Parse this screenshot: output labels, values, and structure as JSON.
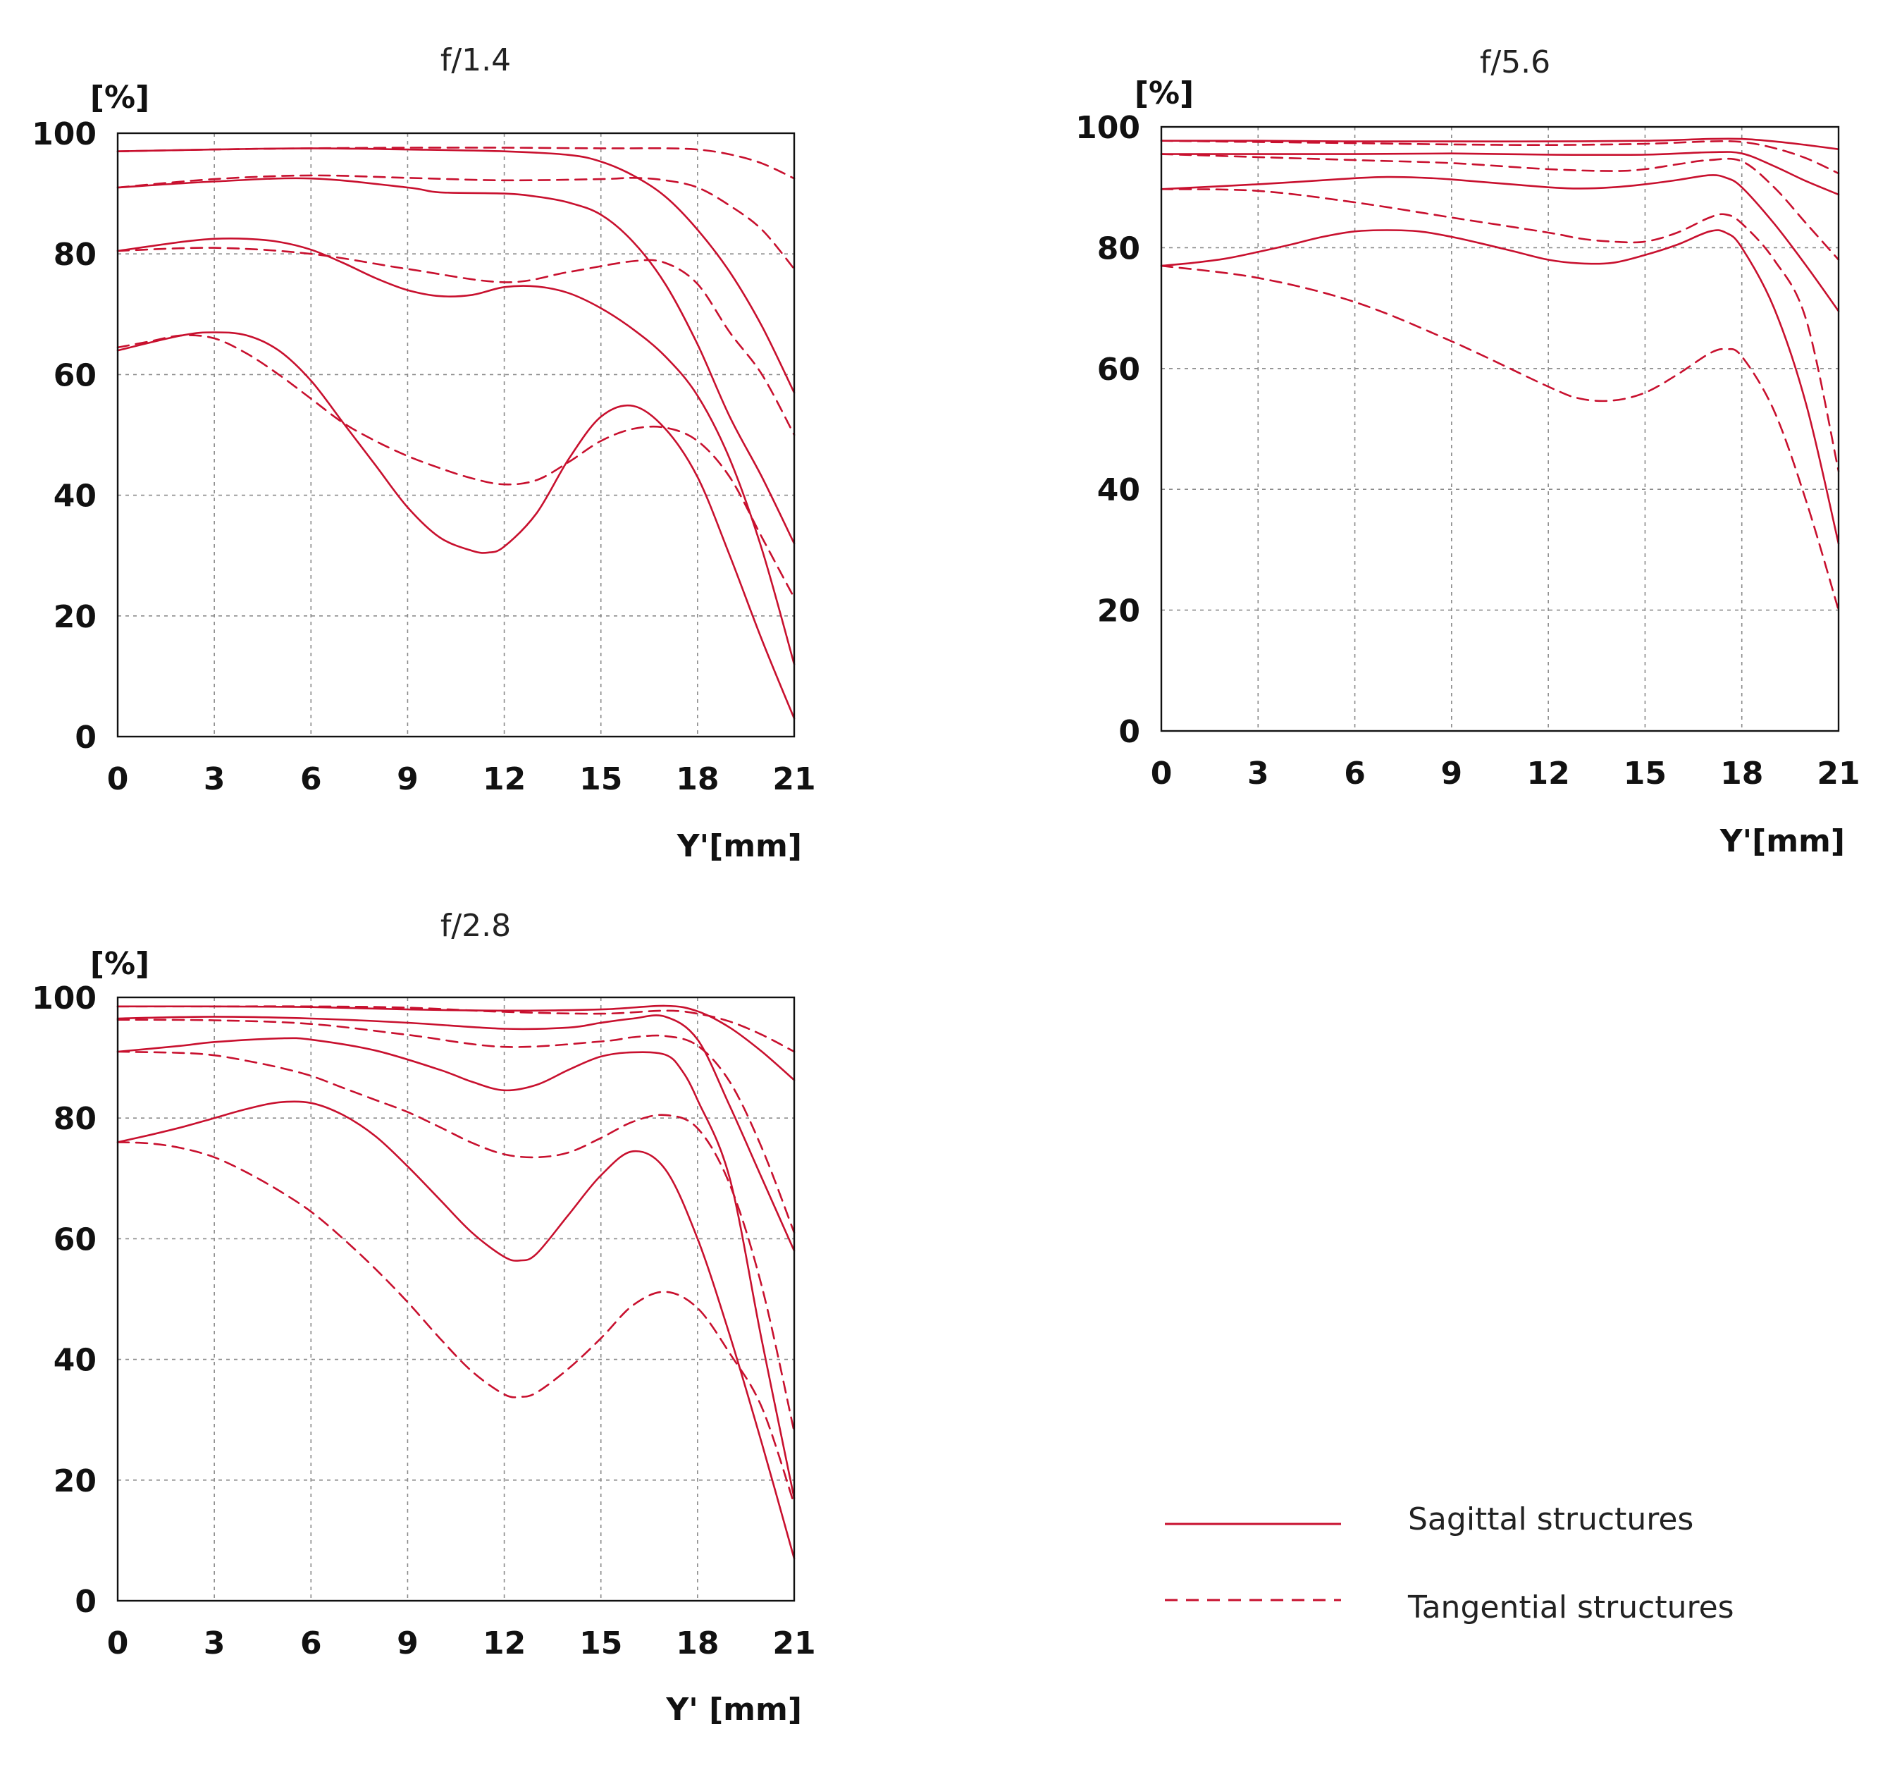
{
  "colors": {
    "curve": "#c8102e",
    "axis": "#111111",
    "grid": "#8a8a8a"
  },
  "legend": {
    "sagittal": "Sagittal structures",
    "tangential": "Tangential structures"
  },
  "chart_data": [
    {
      "type": "line",
      "title": "f/1.4",
      "ylabel": "[%]",
      "xlabel": "Y'[mm]",
      "xlim": [
        0,
        21
      ],
      "ylim": [
        0,
        100
      ],
      "xticks": [
        "0",
        "3",
        "6",
        "9",
        "12",
        "15",
        "18",
        "21"
      ],
      "yticks": [
        "0",
        "20",
        "40",
        "60",
        "80",
        "100"
      ],
      "grid": true,
      "series": [
        {
          "style": "solid",
          "x": [
            0,
            3,
            6,
            9,
            12,
            14,
            15,
            16,
            17,
            18,
            19,
            20,
            21
          ],
          "y": [
            97,
            97.3,
            97.5,
            97.3,
            97,
            96.4,
            95.3,
            93,
            89.5,
            84,
            77,
            68,
            57
          ]
        },
        {
          "style": "dashed",
          "x": [
            0,
            3,
            6,
            9,
            12,
            15,
            16,
            17,
            18,
            19,
            20,
            21
          ],
          "y": [
            97,
            97.3,
            97.5,
            97.6,
            97.6,
            97.5,
            97.5,
            97.5,
            97.3,
            96.5,
            95,
            92.5
          ]
        },
        {
          "style": "solid",
          "x": [
            0,
            3,
            6,
            9,
            10,
            12,
            13,
            14,
            15,
            16,
            17,
            18,
            19,
            20,
            21
          ],
          "y": [
            91,
            92,
            92.5,
            91,
            90.2,
            90,
            89.5,
            88.5,
            86.5,
            82,
            75,
            65,
            53,
            43,
            32
          ]
        },
        {
          "style": "dashed",
          "x": [
            0,
            3,
            6,
            9,
            12,
            15,
            16,
            17,
            18,
            19,
            20,
            21
          ],
          "y": [
            91,
            92.4,
            93,
            92.6,
            92.2,
            92.4,
            92.6,
            92.2,
            91,
            88,
            84,
            77.5
          ]
        },
        {
          "style": "solid",
          "x": [
            0,
            2,
            3,
            4,
            5,
            6,
            7,
            8,
            9,
            10,
            11,
            12,
            13,
            14,
            15,
            16,
            17,
            18,
            19,
            20,
            21
          ],
          "y": [
            80.5,
            82,
            82.5,
            82.5,
            82,
            80.7,
            78.5,
            76,
            74,
            73,
            73.2,
            74.5,
            74.6,
            73.5,
            71,
            67.5,
            63,
            56.5,
            46,
            31,
            12
          ]
        },
        {
          "style": "dashed",
          "x": [
            0,
            3,
            6,
            9,
            12,
            14,
            16,
            17,
            18,
            19,
            20,
            21
          ],
          "y": [
            80.5,
            81,
            80,
            77.5,
            75.3,
            77,
            78.8,
            78.5,
            75,
            67,
            60,
            50
          ]
        },
        {
          "style": "solid",
          "x": [
            0,
            2,
            3,
            4,
            5,
            6,
            7,
            8,
            9,
            10,
            11,
            11.5,
            12,
            13,
            14,
            15,
            16,
            17,
            18,
            19,
            20,
            21
          ],
          "y": [
            64,
            66.5,
            67,
            66.5,
            64,
            59,
            52,
            45,
            38,
            33,
            30.8,
            30.5,
            31.5,
            37,
            46,
            53,
            54.8,
            51,
            43,
            30,
            16,
            3
          ]
        },
        {
          "style": "dashed",
          "x": [
            0,
            1,
            2,
            3,
            4,
            5,
            6,
            7,
            8,
            9,
            10,
            11,
            12,
            13,
            14,
            15,
            16,
            17,
            18,
            19,
            20,
            21
          ],
          "y": [
            64.5,
            65.5,
            66.5,
            66,
            63.5,
            60,
            56,
            52,
            49,
            46.5,
            44.5,
            42.8,
            41.8,
            42.5,
            45.5,
            49,
            51,
            51.2,
            49,
            43,
            33,
            23
          ]
        }
      ]
    },
    {
      "type": "line",
      "title": "f/5.6",
      "ylabel": "[%]",
      "xlabel": "Y'[mm]",
      "xlim": [
        0,
        21
      ],
      "ylim": [
        0,
        100
      ],
      "xticks": [
        "0",
        "3",
        "6",
        "9",
        "12",
        "15",
        "18",
        "21"
      ],
      "yticks": [
        "0",
        "20",
        "40",
        "60",
        "80",
        "100"
      ],
      "grid": true,
      "series": [
        {
          "style": "solid",
          "x": [
            0,
            3,
            6,
            9,
            12,
            15,
            17,
            18,
            19,
            20,
            21
          ],
          "y": [
            97.7,
            97.7,
            97.6,
            97.6,
            97.6,
            97.7,
            98,
            98,
            97.6,
            97,
            96.3
          ]
        },
        {
          "style": "dashed",
          "x": [
            0,
            3,
            6,
            9,
            12,
            15,
            17,
            18,
            19,
            20,
            21
          ],
          "y": [
            97.7,
            97.5,
            97.3,
            97.1,
            97,
            97.2,
            97.6,
            97.5,
            96.5,
            94.8,
            92.3
          ]
        },
        {
          "style": "solid",
          "x": [
            0,
            3,
            6,
            9,
            12,
            15,
            17,
            18,
            19,
            20,
            21
          ],
          "y": [
            95.5,
            95.5,
            95.5,
            95.6,
            95.4,
            95.4,
            95.8,
            95.6,
            93.5,
            91,
            88.8
          ]
        },
        {
          "style": "dashed",
          "x": [
            0,
            3,
            6,
            9,
            12,
            14,
            15,
            16,
            17,
            18,
            19,
            20,
            21
          ],
          "y": [
            95.5,
            95,
            94.5,
            94,
            93,
            92.7,
            93,
            93.8,
            94.5,
            94.3,
            90,
            84,
            78
          ]
        },
        {
          "style": "solid",
          "x": [
            0,
            3,
            6,
            7,
            8,
            9,
            12,
            13,
            14,
            15,
            16,
            17,
            17.5,
            18,
            19,
            20,
            21
          ],
          "y": [
            89.7,
            90.5,
            91.5,
            91.7,
            91.6,
            91.3,
            90,
            89.8,
            90,
            90.5,
            91.2,
            92,
            91.6,
            90,
            84,
            77,
            69.5
          ]
        },
        {
          "style": "dashed",
          "x": [
            0,
            3,
            6,
            9,
            12,
            13,
            14,
            15,
            16,
            17,
            17.5,
            18,
            19,
            20,
            21
          ],
          "y": [
            89.7,
            89.4,
            87.5,
            85,
            82.5,
            81.5,
            81,
            81,
            82.5,
            85,
            85.5,
            84,
            78,
            68,
            43
          ]
        },
        {
          "style": "solid",
          "x": [
            0,
            1,
            2,
            3,
            4,
            5,
            6,
            7,
            8,
            9,
            10,
            11,
            12,
            13,
            14,
            15,
            16,
            17,
            17.5,
            18,
            19,
            20,
            21
          ],
          "y": [
            77,
            77.5,
            78.2,
            79.3,
            80.5,
            81.8,
            82.7,
            82.9,
            82.7,
            81.8,
            80.6,
            79.3,
            78,
            77.4,
            77.5,
            78.8,
            80.5,
            82.7,
            82.5,
            80,
            70,
            54,
            31
          ]
        },
        {
          "style": "dashed",
          "x": [
            0,
            3,
            6,
            9,
            12,
            13,
            14,
            15,
            16,
            17,
            17.5,
            18,
            19,
            20,
            21
          ],
          "y": [
            77,
            75,
            71,
            64.5,
            57,
            55,
            54.7,
            56,
            59,
            62.5,
            63.2,
            62,
            53,
            38,
            20
          ]
        }
      ]
    },
    {
      "type": "line",
      "title": "f/2.8",
      "ylabel": "[%]",
      "xlabel": "Y' [mm]",
      "xlim": [
        0,
        21
      ],
      "ylim": [
        0,
        100
      ],
      "xticks": [
        "0",
        "3",
        "6",
        "9",
        "12",
        "15",
        "18",
        "21"
      ],
      "yticks": [
        "0",
        "20",
        "40",
        "60",
        "80",
        "100"
      ],
      "grid": true,
      "series": [
        {
          "style": "solid",
          "x": [
            0,
            3,
            6,
            9,
            12,
            15,
            17,
            18,
            19,
            20,
            21
          ],
          "y": [
            98.5,
            98.5,
            98.4,
            98,
            97.8,
            98,
            98.6,
            97.7,
            95,
            91,
            86.3
          ]
        },
        {
          "style": "dashed",
          "x": [
            0,
            3,
            6,
            9,
            12,
            15,
            17,
            18,
            19,
            20,
            21
          ],
          "y": [
            98.5,
            98.5,
            98.5,
            98.3,
            97.6,
            97.3,
            97.8,
            97.3,
            96,
            93.8,
            91
          ]
        },
        {
          "style": "solid",
          "x": [
            0,
            3,
            6,
            9,
            12,
            14,
            15,
            16,
            17,
            18,
            19,
            20,
            21
          ],
          "y": [
            96.5,
            96.8,
            96.5,
            95.8,
            94.8,
            95,
            95.8,
            96.5,
            96.8,
            93,
            82,
            70,
            58
          ]
        },
        {
          "style": "dashed",
          "x": [
            0,
            3,
            6,
            9,
            12,
            15,
            16,
            17,
            18,
            19,
            20,
            21
          ],
          "y": [
            96.3,
            96.2,
            95.6,
            93.8,
            91.8,
            92.7,
            93.4,
            93.6,
            92,
            86,
            75,
            61
          ]
        },
        {
          "style": "solid",
          "x": [
            0,
            2,
            3,
            5,
            6,
            8,
            10,
            11,
            12,
            13,
            14,
            15,
            16,
            17,
            17.5,
            18,
            19,
            20,
            21
          ],
          "y": [
            91,
            92,
            92.6,
            93.2,
            93,
            91.2,
            88,
            86,
            84.6,
            85.5,
            88,
            90.2,
            90.9,
            90.5,
            88,
            83,
            70,
            43,
            17
          ]
        },
        {
          "style": "dashed",
          "x": [
            0,
            2,
            3,
            4,
            5,
            6,
            7,
            8,
            9,
            10,
            11,
            12,
            13,
            14,
            15,
            16,
            17,
            18,
            19,
            20,
            21
          ],
          "y": [
            91,
            90.8,
            90.4,
            89.5,
            88.4,
            87,
            85,
            83,
            81,
            78.5,
            75.9,
            74,
            73.5,
            74.3,
            76.7,
            79.4,
            80.5,
            78.3,
            69,
            52,
            28
          ]
        },
        {
          "style": "solid",
          "x": [
            0,
            1,
            2,
            3,
            4,
            5,
            6,
            7,
            8,
            9,
            10,
            11,
            12,
            12.5,
            13,
            14,
            15,
            16,
            17,
            18,
            19,
            20,
            21
          ],
          "y": [
            76,
            77.2,
            78.5,
            80,
            81.5,
            82.6,
            82.5,
            80.5,
            77,
            72,
            66.5,
            61,
            57,
            56.4,
            57.5,
            64,
            70.5,
            74.5,
            71.5,
            60,
            44,
            26,
            7
          ]
        },
        {
          "style": "dashed",
          "x": [
            0,
            1,
            2,
            3,
            4,
            5,
            6,
            7,
            8,
            9,
            10,
            11,
            12,
            12.5,
            13,
            14,
            15,
            16,
            17,
            18,
            19,
            20,
            21
          ],
          "y": [
            76,
            75.8,
            75,
            73.5,
            71,
            68,
            64.5,
            60,
            55,
            49.5,
            43.5,
            38,
            34.2,
            33.8,
            34.5,
            38.5,
            43.5,
            49,
            51.2,
            48.5,
            41,
            32,
            16
          ]
        }
      ]
    }
  ]
}
